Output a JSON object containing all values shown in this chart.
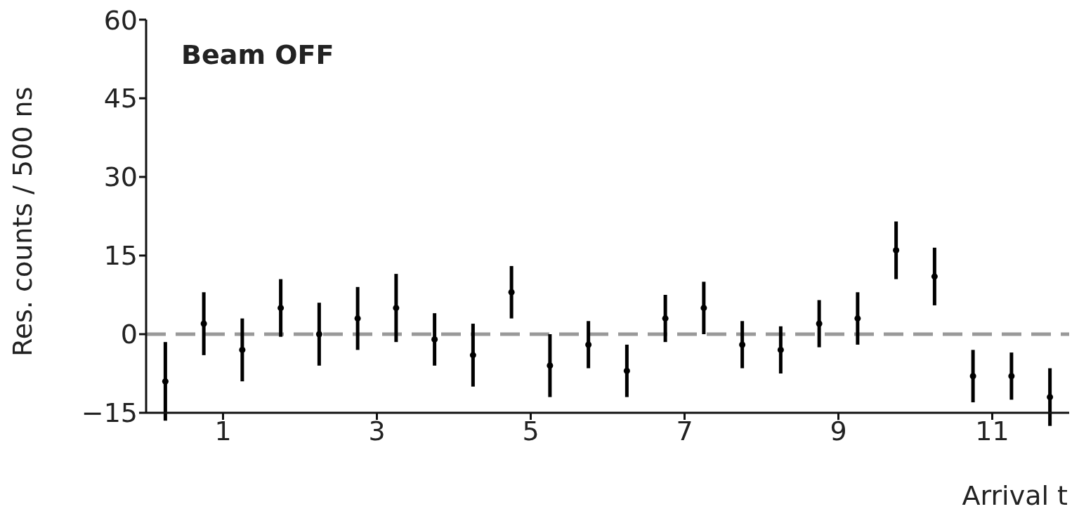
{
  "chart_data": {
    "type": "scatter",
    "ylabel": "Res. counts / 500 ns",
    "xlabel": "Arrival t",
    "annotations": [
      "Beam OFF"
    ],
    "x": [
      0.25,
      0.75,
      1.25,
      1.75,
      2.25,
      2.75,
      3.25,
      3.75,
      4.25,
      4.75,
      5.25,
      5.75,
      6.25,
      6.75,
      7.25,
      7.75,
      8.25,
      8.75,
      9.25,
      9.75,
      10.25,
      10.75,
      11.25,
      11.75
    ],
    "series": [
      {
        "color": "#000000",
        "values": [
          -9,
          2,
          -3,
          5,
          0,
          3,
          5,
          -1,
          -4,
          8,
          -6,
          -2,
          -7,
          3,
          5,
          -2,
          -3,
          2,
          3,
          16,
          11,
          -8,
          -8,
          -12
        ],
        "errors": [
          7.5,
          6,
          6,
          5.5,
          6,
          6,
          6.5,
          5,
          6,
          5,
          6,
          4.5,
          5,
          4.5,
          5,
          4.5,
          4.5,
          4.5,
          5,
          5.5,
          5.5,
          5,
          4.5,
          5.5
        ]
      }
    ],
    "xlim": [
      0,
      12
    ],
    "xticks": [
      1,
      3,
      5,
      7,
      9,
      11
    ],
    "ylim": [
      -15,
      60
    ],
    "yticks": [
      -15,
      0,
      15,
      30,
      45,
      60
    ],
    "ref_lines": [
      {
        "axis": "y",
        "value": 0,
        "color": "#999999",
        "line_style": "dashed"
      }
    ],
    "marker": "circle",
    "grid": false,
    "legend": false
  }
}
